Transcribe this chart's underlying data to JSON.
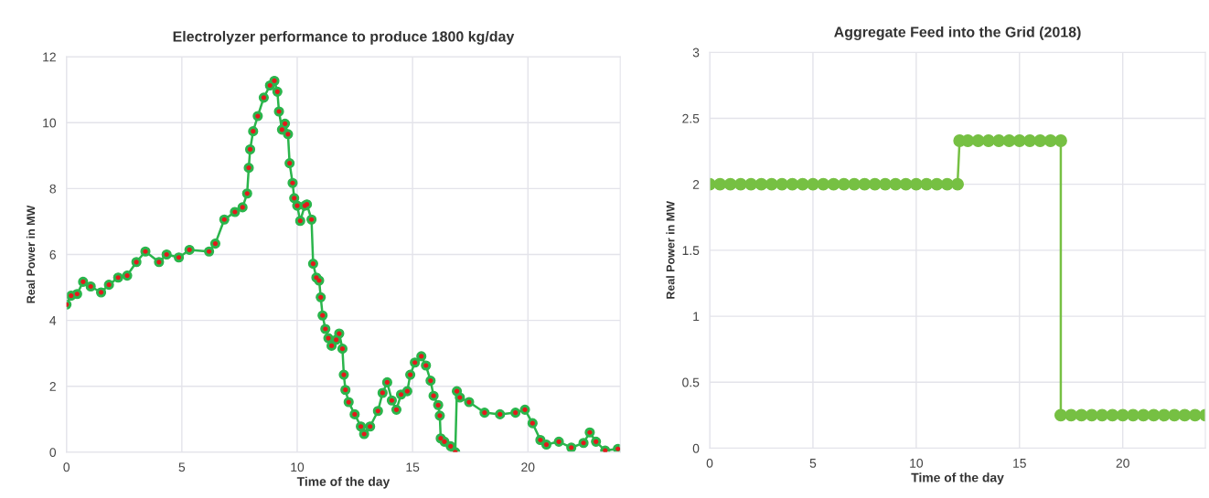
{
  "chart_data": [
    {
      "type": "line",
      "title": "Electrolyzer performance to produce 1800 kg/day",
      "xlabel": "Time of the day",
      "ylabel": "Real Power in MW",
      "xlim": [
        0,
        24
      ],
      "ylim": [
        0,
        12
      ],
      "xticks": [
        0,
        5,
        10,
        15,
        20
      ],
      "yticks": [
        0,
        2,
        4,
        6,
        8,
        10,
        12
      ],
      "grid": true,
      "marker": "circle",
      "line_style": "solid",
      "series": [
        {
          "color": "#2bb54c",
          "x": [
            0,
            0.2,
            0.46,
            0.72,
            1.05,
            1.5,
            1.84,
            2.24,
            2.63,
            3.03,
            3.42,
            4.01,
            4.34,
            4.87,
            5.33,
            6.18,
            6.45,
            6.84,
            7.3,
            7.63,
            7.83,
            7.9,
            7.96,
            8.09,
            8.29,
            8.55,
            8.82,
            9.01,
            9.14,
            9.21,
            9.34,
            9.47,
            9.6,
            9.67,
            9.8,
            9.87,
            10.0,
            10.13,
            10.33,
            10.42,
            10.62,
            10.69,
            10.83,
            10.95,
            11.02,
            11.1,
            11.22,
            11.35,
            11.49,
            11.69,
            11.82,
            11.96,
            12.02,
            12.09,
            12.23,
            12.49,
            12.76,
            12.9,
            13.16,
            13.5,
            13.7,
            13.9,
            14.1,
            14.3,
            14.5,
            14.77,
            14.9,
            15.1,
            15.38,
            15.58,
            15.78,
            15.91,
            16.11,
            16.18,
            16.22,
            16.38,
            16.65,
            16.85,
            16.92,
            17.05,
            17.45,
            18.12,
            18.79,
            19.46,
            19.87,
            20.2,
            20.54,
            20.8,
            21.34,
            21.88,
            22.41,
            22.68,
            22.95,
            23.35,
            23.9
          ],
          "values": [
            4.48,
            4.75,
            4.8,
            5.17,
            5.03,
            4.85,
            5.08,
            5.3,
            5.36,
            5.77,
            6.09,
            5.77,
            6.0,
            5.91,
            6.14,
            6.09,
            6.33,
            7.06,
            7.29,
            7.43,
            7.85,
            8.63,
            9.19,
            9.74,
            10.2,
            10.76,
            11.13,
            11.27,
            10.94,
            10.34,
            9.79,
            9.97,
            9.65,
            8.77,
            8.17,
            7.71,
            7.48,
            7.02,
            7.48,
            7.52,
            7.06,
            5.72,
            5.3,
            5.21,
            4.7,
            4.15,
            3.74,
            3.46,
            3.23,
            3.41,
            3.6,
            3.14,
            2.35,
            1.89,
            1.52,
            1.15,
            0.78,
            0.55,
            0.78,
            1.25,
            1.8,
            2.12,
            1.57,
            1.29,
            1.75,
            1.85,
            2.35,
            2.72,
            2.91,
            2.63,
            2.17,
            1.71,
            1.43,
            1.11,
            0.42,
            0.32,
            0.18,
            0.0,
            1.85,
            1.66,
            1.52,
            1.2,
            1.15,
            1.2,
            1.29,
            0.88,
            0.37,
            0.23,
            0.32,
            0.14,
            0.28,
            0.6,
            0.32,
            0.05,
            0.1
          ]
        },
        {
          "type": "scatter",
          "color": "#e3191c",
          "x": [
            0,
            0.2,
            0.46,
            0.72,
            1.05,
            1.5,
            1.84,
            2.24,
            2.63,
            3.03,
            3.42,
            4.01,
            4.34,
            4.87,
            5.33,
            6.18,
            6.45,
            6.84,
            7.3,
            7.63,
            7.83,
            7.9,
            7.96,
            8.09,
            8.29,
            8.55,
            8.82,
            9.01,
            9.14,
            9.21,
            9.34,
            9.47,
            9.6,
            9.67,
            9.8,
            9.87,
            10.0,
            10.13,
            10.33,
            10.42,
            10.62,
            10.69,
            10.83,
            10.95,
            11.02,
            11.1,
            11.22,
            11.35,
            11.49,
            11.69,
            11.82,
            11.96,
            12.02,
            12.09,
            12.23,
            12.49,
            12.76,
            12.9,
            13.16,
            13.5,
            13.7,
            13.9,
            14.1,
            14.3,
            14.5,
            14.77,
            14.9,
            15.1,
            15.38,
            15.58,
            15.78,
            15.91,
            16.11,
            16.18,
            16.22,
            16.38,
            16.65,
            16.85,
            16.92,
            17.05,
            17.45,
            18.12,
            18.79,
            19.46,
            19.87,
            20.2,
            20.54,
            20.8,
            21.34,
            21.88,
            22.41,
            22.68,
            22.95,
            23.35,
            23.9
          ],
          "values": [
            4.48,
            4.75,
            4.8,
            5.17,
            5.03,
            4.85,
            5.08,
            5.3,
            5.36,
            5.77,
            6.09,
            5.77,
            6.0,
            5.91,
            6.14,
            6.09,
            6.33,
            7.06,
            7.29,
            7.43,
            7.85,
            8.63,
            9.19,
            9.74,
            10.2,
            10.76,
            11.13,
            11.27,
            10.94,
            10.34,
            9.79,
            9.97,
            9.65,
            8.77,
            8.17,
            7.71,
            7.48,
            7.02,
            7.48,
            7.52,
            7.06,
            5.72,
            5.3,
            5.21,
            4.7,
            4.15,
            3.74,
            3.46,
            3.23,
            3.41,
            3.6,
            3.14,
            2.35,
            1.89,
            1.52,
            1.15,
            0.78,
            0.55,
            0.78,
            1.25,
            1.8,
            2.12,
            1.57,
            1.29,
            1.75,
            1.85,
            2.35,
            2.72,
            2.91,
            2.63,
            2.17,
            1.71,
            1.43,
            1.11,
            0.42,
            0.32,
            0.18,
            0.0,
            1.85,
            1.66,
            1.52,
            1.2,
            1.15,
            1.2,
            1.29,
            0.88,
            0.37,
            0.23,
            0.32,
            0.14,
            0.28,
            0.6,
            0.32,
            0.05,
            0.1
          ]
        }
      ]
    },
    {
      "type": "line",
      "title": "Aggregate Feed into the Grid (2018)",
      "xlabel": "Time of the day",
      "ylabel": "Real Power in MW",
      "xlim": [
        0,
        24
      ],
      "ylim": [
        0,
        3
      ],
      "xticks": [
        0,
        5,
        10,
        15,
        20
      ],
      "yticks": [
        0,
        0.5,
        1,
        1.5,
        2,
        2.5,
        3
      ],
      "grid": true,
      "marker": "circle",
      "line_style": "solid",
      "series": [
        {
          "color": "#76c043",
          "x": [
            0,
            0.5,
            1,
            1.5,
            2,
            2.5,
            3,
            3.5,
            4,
            4.5,
            5,
            5.5,
            6,
            6.5,
            7,
            7.5,
            8,
            8.5,
            9,
            9.5,
            10,
            10.5,
            11,
            11.5,
            12,
            12.1,
            12.5,
            13,
            13.5,
            14,
            14.5,
            15,
            15.5,
            16,
            16.5,
            17,
            17,
            17.5,
            18,
            18.5,
            19,
            19.5,
            20,
            20.5,
            21,
            21.5,
            22,
            22.5,
            23,
            23.5,
            24
          ],
          "values": [
            2,
            2,
            2,
            2,
            2,
            2,
            2,
            2,
            2,
            2,
            2,
            2,
            2,
            2,
            2,
            2,
            2,
            2,
            2,
            2,
            2,
            2,
            2,
            2,
            2,
            2.33,
            2.33,
            2.33,
            2.33,
            2.33,
            2.33,
            2.33,
            2.33,
            2.33,
            2.33,
            2.33,
            0.25,
            0.25,
            0.25,
            0.25,
            0.25,
            0.25,
            0.25,
            0.25,
            0.25,
            0.25,
            0.25,
            0.25,
            0.25,
            0.25,
            0.25
          ]
        }
      ]
    }
  ]
}
